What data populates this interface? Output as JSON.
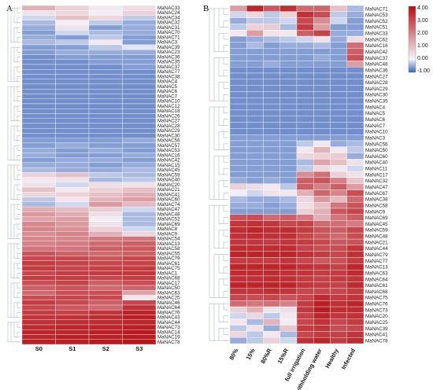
{
  "chart_data": [
    {
      "panel": "A",
      "type": "heatmap",
      "columns": [
        "S0",
        "S1",
        "S2",
        "S3"
      ],
      "rows": [
        "MaNAC33",
        "MaNAC24",
        "MaNAC34",
        "MaNAC32",
        "MaNAC31",
        "MaNAC70",
        "MaNAC71",
        "MaNAC3",
        "MaNAC39",
        "MaNAC23",
        "MaNAC36",
        "MaNAC35",
        "MaNAC37",
        "MaNAC77",
        "MaNAC38",
        "MaNAC4",
        "MaNAC5",
        "MaNAC6",
        "MaNAC7",
        "MaNAC10",
        "MaNAC12",
        "MaNAC18",
        "MaNAC26",
        "MaNAC27",
        "MaNAC28",
        "MaNAC29",
        "MaNAC30",
        "MaNAC56",
        "MaNAC57",
        "MaNAC53",
        "MaNAC16",
        "MaNAC42",
        "MaNAC15",
        "MaNAC45",
        "MaNAC59",
        "MaNAC40",
        "MaNAC20",
        "MaNAC21",
        "MaNAC41",
        "MaNAC60",
        "MaNAC74",
        "MaNAC47",
        "MaNAC48",
        "MaNAC52",
        "MaNAC69",
        "MaNAC8",
        "MaNAC9",
        "MaNAC54",
        "MaNAC13",
        "MaNAC58",
        "MaNAC55",
        "MaNAC79",
        "MaNAC61",
        "MaNAC75",
        "MaNAC1",
        "MaNAC68",
        "MaNAC17",
        "MaNAC50",
        "MaNAC63",
        "MaNAC25",
        "MaNAC46",
        "MaNAC64",
        "MaNAC76",
        "MaNAC43",
        "MaNAC44",
        "MaNAC73",
        "MaNAC14",
        "MaNAC19",
        "MaNAC78"
      ],
      "values": [
        [
          1.2,
          0.6,
          0.2,
          0.4
        ],
        [
          0.3,
          0.5,
          0.1,
          0.6
        ],
        [
          -0.2,
          0.9,
          0.5,
          -0.3
        ],
        [
          -0.4,
          0.1,
          -0.3,
          -0.5
        ],
        [
          -0.5,
          0.3,
          -0.6,
          -0.5
        ],
        [
          -0.6,
          -0.2,
          -0.4,
          -0.5
        ],
        [
          -0.5,
          -0.6,
          -0.3,
          -0.6
        ],
        [
          -0.4,
          -0.3,
          0.2,
          -0.6
        ],
        [
          -0.6,
          -0.6,
          -0.3,
          -0.1
        ],
        [
          -0.6,
          -0.5,
          -0.5,
          -0.5
        ],
        [
          -0.7,
          -0.6,
          -0.6,
          -0.6
        ],
        [
          -0.7,
          -0.7,
          -0.6,
          -0.6
        ],
        [
          -0.7,
          -0.7,
          -0.7,
          -0.6
        ],
        [
          -0.7,
          -0.7,
          -0.7,
          -0.7
        ],
        [
          -0.7,
          -0.7,
          -0.7,
          -0.7
        ],
        [
          -0.7,
          -0.7,
          -0.7,
          -0.7
        ],
        [
          -0.7,
          -0.7,
          -0.7,
          -0.7
        ],
        [
          -0.7,
          -0.7,
          -0.7,
          -0.7
        ],
        [
          -0.7,
          -0.7,
          -0.7,
          -0.7
        ],
        [
          -0.7,
          -0.7,
          -0.7,
          -0.7
        ],
        [
          -0.7,
          -0.7,
          -0.7,
          -0.7
        ],
        [
          -0.7,
          -0.7,
          -0.7,
          -0.7
        ],
        [
          -0.7,
          -0.7,
          -0.7,
          -0.7
        ],
        [
          -0.7,
          -0.7,
          -0.7,
          -0.7
        ],
        [
          -0.7,
          -0.7,
          -0.7,
          -0.7
        ],
        [
          -0.7,
          -0.7,
          -0.7,
          -0.7
        ],
        [
          -0.7,
          -0.7,
          -0.7,
          -0.7
        ],
        [
          -0.6,
          -0.6,
          -0.6,
          -0.5
        ],
        [
          -0.6,
          -0.5,
          -0.6,
          -0.6
        ],
        [
          -0.5,
          -0.6,
          -0.5,
          -0.6
        ],
        [
          -0.5,
          -0.6,
          -0.6,
          -0.5
        ],
        [
          -0.6,
          -0.5,
          -0.5,
          -0.6
        ],
        [
          -0.5,
          -0.5,
          -0.6,
          -0.5
        ],
        [
          -0.4,
          -0.5,
          -0.5,
          -0.4
        ],
        [
          0.6,
          0.9,
          -0.3,
          -0.4
        ],
        [
          0.2,
          0.3,
          -0.4,
          -0.3
        ],
        [
          0.3,
          -0.2,
          0.4,
          0.3
        ],
        [
          0.9,
          0.2,
          0.6,
          0.9
        ],
        [
          0.5,
          0.6,
          0.9,
          1.2
        ],
        [
          -0.3,
          0.2,
          1.1,
          1.5
        ],
        [
          -0.4,
          -0.2,
          1.6,
          1.0
        ],
        [
          1.2,
          1.0,
          0.7,
          -0.2
        ],
        [
          1.6,
          1.3,
          0.4,
          -0.4
        ],
        [
          1.4,
          1.5,
          0.1,
          -0.4
        ],
        [
          1.9,
          1.6,
          0.3,
          -0.4
        ],
        [
          1.9,
          1.7,
          0.6,
          -0.2
        ],
        [
          1.8,
          2.0,
          1.2,
          0.5
        ],
        [
          1.9,
          1.9,
          2.1,
          2.2
        ],
        [
          2.0,
          2.1,
          2.4,
          2.6
        ],
        [
          2.2,
          2.2,
          2.6,
          2.7
        ],
        [
          2.8,
          2.6,
          2.4,
          2.6
        ],
        [
          3.0,
          3.0,
          2.8,
          3.0
        ],
        [
          3.2,
          3.1,
          3.0,
          3.1
        ],
        [
          3.2,
          3.0,
          3.1,
          3.2
        ],
        [
          3.0,
          3.2,
          3.2,
          3.3
        ],
        [
          3.2,
          3.2,
          3.0,
          3.2
        ],
        [
          2.9,
          3.1,
          2.6,
          2.9
        ],
        [
          2.6,
          2.8,
          2.4,
          2.5
        ],
        [
          2.4,
          2.9,
          2.9,
          1.4
        ],
        [
          2.9,
          3.0,
          3.0,
          0.2
        ],
        [
          3.2,
          3.0,
          2.6,
          3.0
        ],
        [
          3.0,
          2.7,
          2.4,
          3.4
        ],
        [
          3.2,
          3.1,
          3.3,
          3.6
        ],
        [
          3.3,
          3.4,
          3.5,
          3.7
        ],
        [
          3.4,
          3.5,
          3.5,
          3.6
        ],
        [
          3.5,
          3.6,
          3.6,
          3.7
        ],
        [
          3.6,
          3.6,
          3.7,
          3.8
        ],
        [
          3.6,
          3.7,
          3.7,
          3.8
        ],
        [
          3.7,
          3.7,
          3.8,
          3.9
        ]
      ]
    },
    {
      "panel": "B",
      "type": "heatmap",
      "columns": [
        "80%",
        "15%",
        "80%R",
        "15%R",
        "full irrigation",
        "withholding water",
        "Healthy",
        "Infected"
      ],
      "rows": [
        "MaNAC71",
        "MaNAC53",
        "MaNAC52",
        "MaNAC51",
        "MaNAC33",
        "MaNAC62",
        "MaNAC16",
        "MaNAC42",
        "MaNAC37",
        "MaNAC48",
        "MaNAC36",
        "MaNAC27",
        "MaNAC28",
        "MaNAC29",
        "MaNAC30",
        "MaNAC35",
        "MaNAC4",
        "MaNAC5",
        "MaNAC6",
        "MaNAC7",
        "MaNAC10",
        "MaNAC3",
        "MaNAC56",
        "MaNAC50",
        "MaNAC60",
        "MaNAC40",
        "MaNAC11",
        "MaNAC17",
        "MaNAC32",
        "MaNAC47",
        "MaNAC67",
        "MaNAC38",
        "MaNAC58",
        "MaNAC9",
        "MaNAC69",
        "MaNAC45",
        "MaNAC59",
        "MaNAC48",
        "MaNAC21",
        "MaNAC44",
        "MaNAC79",
        "MaNAC77",
        "MaNAC13",
        "MaNAC63",
        "MaNAC64",
        "MaNAC61",
        "MaNAC68",
        "MaNAC75",
        "MaNAC76",
        "MaNAC73",
        "MaNAC20",
        "MaNAC25",
        "MaNAC39",
        "MaNAC41",
        "MaNAC78"
      ],
      "values": [
        [
          1.5,
          3.6,
          2.7,
          3.4,
          2.4,
          2.5,
          0.9,
          -0.4
        ],
        [
          -0.2,
          0.5,
          -0.3,
          0.6,
          3.4,
          2.9,
          -0.3,
          -0.5
        ],
        [
          -0.5,
          -0.3,
          -0.3,
          -0.2,
          3.0,
          1.8,
          -0.2,
          -0.6
        ],
        [
          -0.3,
          0.6,
          0.7,
          -0.4,
          3.2,
          1.5,
          -0.6,
          -0.6
        ],
        [
          0.2,
          1.5,
          0.3,
          0.2,
          2.6,
          3.1,
          -0.5,
          -0.5
        ],
        [
          -0.6,
          -0.5,
          -0.4,
          -0.3,
          -0.2,
          0.3,
          -0.5,
          0.4
        ],
        [
          -0.6,
          -0.4,
          -0.6,
          -0.5,
          -0.5,
          -0.4,
          -0.6,
          2.3
        ],
        [
          -0.6,
          -0.6,
          -0.6,
          -0.6,
          -0.6,
          -0.6,
          -0.6,
          2.6
        ],
        [
          -0.6,
          -0.6,
          -0.6,
          -0.6,
          -0.6,
          -0.5,
          -0.6,
          2.8
        ],
        [
          -0.6,
          -0.6,
          -0.5,
          -0.6,
          -0.6,
          -0.6,
          -0.6,
          1.5
        ],
        [
          -0.7,
          -0.7,
          -0.7,
          -0.7,
          -0.7,
          -0.7,
          -0.7,
          -0.7
        ],
        [
          -0.7,
          -0.7,
          -0.7,
          -0.7,
          -0.7,
          -0.7,
          -0.7,
          -0.7
        ],
        [
          -0.7,
          -0.7,
          -0.7,
          -0.7,
          -0.7,
          -0.7,
          -0.7,
          -0.7
        ],
        [
          -0.7,
          -0.7,
          -0.7,
          -0.7,
          -0.7,
          -0.7,
          -0.7,
          -0.7
        ],
        [
          -0.7,
          -0.7,
          -0.7,
          -0.7,
          -0.7,
          -0.7,
          -0.7,
          -0.7
        ],
        [
          -0.7,
          -0.7,
          -0.7,
          -0.7,
          -0.7,
          -0.7,
          -0.7,
          -0.7
        ],
        [
          -0.7,
          -0.7,
          -0.7,
          -0.7,
          -0.7,
          -0.7,
          -0.7,
          -0.7
        ],
        [
          -0.7,
          -0.7,
          -0.7,
          -0.7,
          -0.7,
          -0.7,
          -0.7,
          -0.7
        ],
        [
          -0.7,
          -0.7,
          -0.7,
          -0.7,
          -0.7,
          -0.7,
          -0.7,
          -0.7
        ],
        [
          -0.7,
          -0.7,
          -0.7,
          -0.7,
          -0.7,
          -0.7,
          -0.7,
          -0.7
        ],
        [
          -0.7,
          -0.7,
          -0.7,
          -0.7,
          -0.7,
          -0.7,
          -0.7,
          -0.7
        ],
        [
          -0.6,
          -0.6,
          -0.6,
          -0.6,
          -0.6,
          -0.6,
          -0.6,
          -0.6
        ],
        [
          -0.6,
          -0.6,
          -0.6,
          -0.6,
          -0.3,
          0.2,
          -0.5,
          -0.4
        ],
        [
          -0.6,
          -0.6,
          -0.6,
          -0.6,
          0.2,
          1.1,
          0.2,
          -0.3
        ],
        [
          -0.6,
          -0.6,
          -0.6,
          -0.6,
          0.5,
          0.6,
          0.7,
          -0.5
        ],
        [
          -0.6,
          -0.6,
          -0.6,
          -0.6,
          -0.4,
          1.4,
          0.9,
          0.3
        ],
        [
          -0.6,
          -0.6,
          -0.6,
          -0.6,
          -0.3,
          0.5,
          0.2,
          -0.2
        ],
        [
          -0.6,
          -0.6,
          -0.6,
          -0.6,
          1.8,
          2.3,
          0.6,
          0.3
        ],
        [
          -0.5,
          -0.6,
          -0.5,
          -0.6,
          2.6,
          2.8,
          2.0,
          0.8
        ],
        [
          0.6,
          0.4,
          0.2,
          -0.3,
          2.6,
          2.0,
          2.6,
          1.5
        ],
        [
          0.1,
          -0.2,
          0.3,
          0.2,
          1.2,
          2.5,
          1.9,
          2.9
        ],
        [
          -0.4,
          -0.5,
          -0.5,
          -0.4,
          0.5,
          1.6,
          1.0,
          2.4
        ],
        [
          -0.5,
          -0.5,
          -0.6,
          -0.5,
          0.4,
          0.9,
          2.2,
          2.8
        ],
        [
          -0.6,
          -0.6,
          -0.6,
          -0.6,
          0.6,
          1.2,
          2.7,
          3.0
        ],
        [
          2.8,
          2.9,
          2.4,
          2.6,
          2.1,
          1.2,
          2.2,
          2.6
        ],
        [
          3.3,
          3.4,
          3.3,
          3.0,
          3.1,
          2.4,
          2.3,
          2.1
        ],
        [
          3.5,
          3.6,
          3.5,
          3.5,
          3.2,
          2.8,
          2.6,
          3.0
        ],
        [
          3.4,
          3.5,
          3.4,
          3.4,
          3.0,
          2.7,
          2.4,
          2.9
        ],
        [
          3.3,
          3.3,
          3.2,
          3.3,
          3.2,
          3.0,
          2.7,
          2.8
        ],
        [
          3.5,
          3.5,
          3.5,
          3.5,
          3.1,
          2.9,
          2.9,
          3.3
        ],
        [
          3.6,
          3.6,
          3.6,
          3.6,
          3.4,
          3.2,
          3.0,
          3.4
        ],
        [
          3.2,
          3.2,
          3.2,
          3.3,
          3.0,
          2.7,
          2.8,
          3.2
        ],
        [
          3.6,
          3.6,
          3.6,
          3.6,
          3.4,
          3.3,
          3.1,
          3.6
        ],
        [
          3.5,
          3.5,
          3.5,
          3.4,
          3.3,
          3.2,
          3.2,
          3.5
        ],
        [
          3.4,
          3.4,
          3.5,
          3.4,
          3.2,
          3.1,
          3.2,
          3.3
        ],
        [
          3.6,
          3.6,
          3.6,
          3.6,
          3.3,
          3.2,
          3.1,
          3.5
        ],
        [
          3.3,
          3.3,
          3.4,
          3.3,
          3.0,
          3.0,
          3.0,
          3.2
        ],
        [
          3.0,
          2.9,
          3.0,
          2.8,
          3.0,
          3.5,
          3.2,
          3.3
        ],
        [
          2.4,
          2.2,
          2.3,
          2.0,
          3.2,
          3.7,
          3.4,
          3.6
        ],
        [
          0.6,
          1.2,
          0.3,
          0.4,
          3.3,
          3.8,
          3.5,
          3.5
        ],
        [
          -0.2,
          0.5,
          -0.3,
          0.2,
          3.1,
          3.6,
          3.3,
          3.4
        ],
        [
          0.2,
          -0.4,
          1.1,
          0.1,
          3.0,
          3.4,
          3.0,
          3.2
        ],
        [
          -0.3,
          0.3,
          -0.5,
          0.8,
          3.2,
          3.3,
          2.9,
          3.0
        ],
        [
          0.5,
          -0.3,
          0.2,
          -0.4,
          3.0,
          3.2,
          3.1,
          3.3
        ],
        [
          -0.5,
          -0.3,
          0.6,
          -0.2,
          3.4,
          3.6,
          3.2,
          3.5
        ]
      ]
    }
  ],
  "legend": {
    "ticks": [
      "4.00",
      "3.00",
      "2.00",
      "1.00",
      "0.00",
      "-1.00"
    ],
    "min": -1,
    "max": 4,
    "colors": {
      "low": "#3a64b8",
      "zero": "#f4f4fb",
      "high": "#b40f14"
    }
  },
  "panels": {
    "a_label": "A",
    "b_label": "B"
  }
}
